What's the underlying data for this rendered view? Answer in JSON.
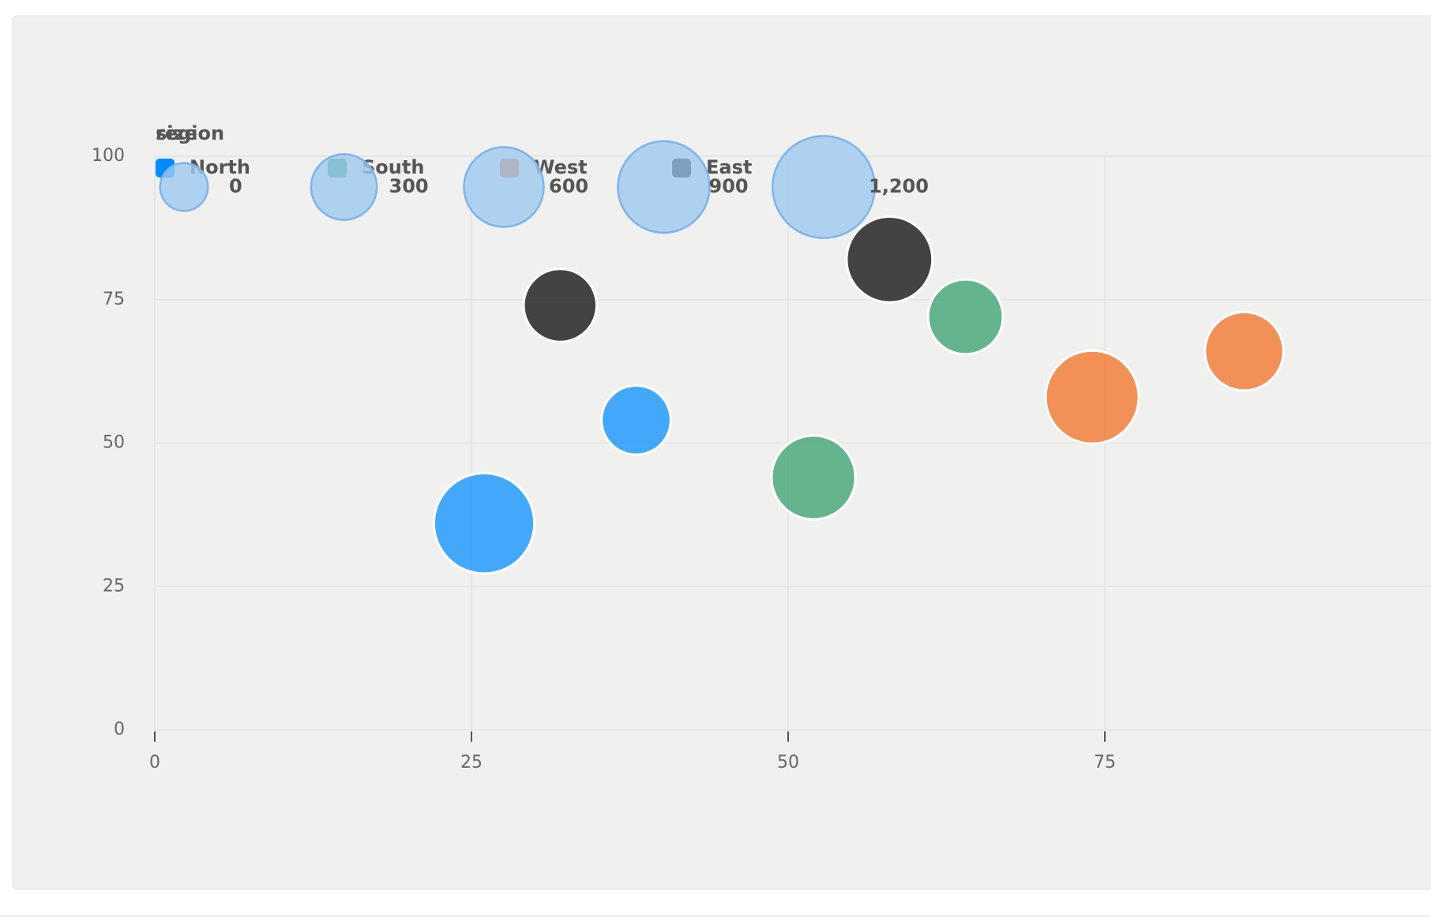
{
  "chart_data": {
    "type": "bubble",
    "color_legend_title": "region",
    "series": [
      {
        "name": "North",
        "color": "#008cff",
        "x": [
          26,
          38
        ],
        "y": [
          36,
          54
        ],
        "size": [
          1150,
          370
        ]
      },
      {
        "name": "South",
        "color": "#2e9e6a",
        "x": [
          52,
          64
        ],
        "y": [
          44,
          72
        ],
        "size": [
          700,
          490
        ]
      },
      {
        "name": "West",
        "color": "#f26b1d",
        "x": [
          74,
          86
        ],
        "y": [
          58,
          66
        ],
        "size": [
          940,
          570
        ]
      },
      {
        "name": "East",
        "color": "#000000",
        "x": [
          32,
          58
        ],
        "y": [
          74,
          82
        ],
        "size": [
          450,
          750
        ]
      }
    ],
    "size_legend": {
      "title": "size",
      "values": [
        0,
        300,
        600,
        900,
        {
          "value": 1200,
          "label": "1,200"
        }
      ]
    },
    "xlim": [
      0,
      100
    ],
    "xticks": [
      0,
      25,
      50,
      75
    ],
    "ylim": [
      0,
      100
    ],
    "yticks": [
      0,
      25,
      50,
      75,
      100
    ],
    "grid": true
  }
}
